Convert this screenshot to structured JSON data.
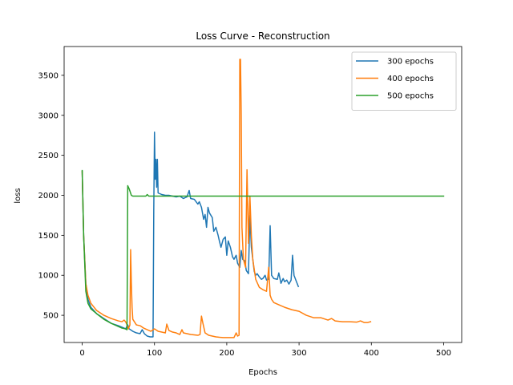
{
  "chart_data": {
    "type": "line",
    "title": "Loss Curve - Reconstruction",
    "xlabel": "Epochs",
    "ylabel": "loss",
    "xlim": [
      -25,
      525
    ],
    "ylim": [
      160,
      3860
    ],
    "xticks": [
      0,
      100,
      200,
      300,
      400,
      500
    ],
    "yticks": [
      500,
      1000,
      1500,
      2000,
      2500,
      3000,
      3500
    ],
    "grid": false,
    "legend_position": "top-right",
    "series": [
      {
        "name": "300 epochs",
        "color": "#1f77b4",
        "points": [
          [
            0,
            2300
          ],
          [
            2,
            1500
          ],
          [
            5,
            900
          ],
          [
            8,
            700
          ],
          [
            12,
            600
          ],
          [
            20,
            520
          ],
          [
            30,
            460
          ],
          [
            40,
            400
          ],
          [
            50,
            370
          ],
          [
            58,
            340
          ],
          [
            60,
            330
          ],
          [
            63,
            380
          ],
          [
            65,
            330
          ],
          [
            70,
            300
          ],
          [
            75,
            280
          ],
          [
            80,
            270
          ],
          [
            83,
            320
          ],
          [
            86,
            270
          ],
          [
            90,
            240
          ],
          [
            94,
            230
          ],
          [
            97,
            230
          ],
          [
            98,
            230
          ],
          [
            99,
            1800
          ],
          [
            100,
            2790
          ],
          [
            101,
            2200
          ],
          [
            102,
            2450
          ],
          [
            103,
            2100
          ],
          [
            104,
            2450
          ],
          [
            105,
            2030
          ],
          [
            110,
            2010
          ],
          [
            115,
            2000
          ],
          [
            120,
            2000
          ],
          [
            125,
            1990
          ],
          [
            130,
            1980
          ],
          [
            135,
            1990
          ],
          [
            140,
            1960
          ],
          [
            145,
            1980
          ],
          [
            148,
            2060
          ],
          [
            150,
            1960
          ],
          [
            155,
            1950
          ],
          [
            160,
            1890
          ],
          [
            162,
            1920
          ],
          [
            165,
            1850
          ],
          [
            168,
            1700
          ],
          [
            170,
            1760
          ],
          [
            172,
            1600
          ],
          [
            174,
            1850
          ],
          [
            176,
            1780
          ],
          [
            180,
            1720
          ],
          [
            182,
            1550
          ],
          [
            185,
            1600
          ],
          [
            188,
            1500
          ],
          [
            190,
            1420
          ],
          [
            192,
            1350
          ],
          [
            195,
            1450
          ],
          [
            198,
            1480
          ],
          [
            200,
            1250
          ],
          [
            202,
            1430
          ],
          [
            205,
            1350
          ],
          [
            208,
            1230
          ],
          [
            210,
            1200
          ],
          [
            213,
            1250
          ],
          [
            215,
            1150
          ],
          [
            218,
            1100
          ],
          [
            220,
            1310
          ],
          [
            222,
            1200
          ],
          [
            225,
            1180
          ],
          [
            227,
            1060
          ],
          [
            230,
            1020
          ],
          [
            232,
            1750
          ],
          [
            234,
            1350
          ],
          [
            236,
            1200
          ],
          [
            238,
            1050
          ],
          [
            240,
            1000
          ],
          [
            242,
            1020
          ],
          [
            245,
            980
          ],
          [
            248,
            950
          ],
          [
            250,
            960
          ],
          [
            253,
            1000
          ],
          [
            255,
            940
          ],
          [
            258,
            950
          ],
          [
            260,
            1620
          ],
          [
            262,
            1000
          ],
          [
            265,
            960
          ],
          [
            270,
            950
          ],
          [
            272,
            1030
          ],
          [
            275,
            900
          ],
          [
            278,
            960
          ],
          [
            280,
            920
          ],
          [
            283,
            940
          ],
          [
            286,
            890
          ],
          [
            289,
            940
          ],
          [
            291,
            1250
          ],
          [
            293,
            1000
          ],
          [
            296,
            930
          ],
          [
            299,
            860
          ]
        ]
      },
      {
        "name": "400 epochs",
        "color": "#ff7f0e",
        "points": [
          [
            0,
            2300
          ],
          [
            2,
            1500
          ],
          [
            5,
            900
          ],
          [
            8,
            750
          ],
          [
            12,
            650
          ],
          [
            20,
            560
          ],
          [
            30,
            500
          ],
          [
            40,
            460
          ],
          [
            50,
            430
          ],
          [
            55,
            420
          ],
          [
            58,
            440
          ],
          [
            60,
            420
          ],
          [
            62,
            380
          ],
          [
            64,
            330
          ],
          [
            66,
            380
          ],
          [
            67,
            1320
          ],
          [
            68,
            900
          ],
          [
            69,
            600
          ],
          [
            70,
            450
          ],
          [
            75,
            380
          ],
          [
            80,
            370
          ],
          [
            85,
            340
          ],
          [
            90,
            320
          ],
          [
            95,
            300
          ],
          [
            100,
            330
          ],
          [
            105,
            300
          ],
          [
            110,
            290
          ],
          [
            115,
            280
          ],
          [
            117,
            390
          ],
          [
            120,
            310
          ],
          [
            125,
            290
          ],
          [
            130,
            280
          ],
          [
            135,
            260
          ],
          [
            138,
            320
          ],
          [
            140,
            280
          ],
          [
            145,
            270
          ],
          [
            150,
            260
          ],
          [
            155,
            255
          ],
          [
            160,
            250
          ],
          [
            163,
            260
          ],
          [
            165,
            490
          ],
          [
            167,
            400
          ],
          [
            170,
            280
          ],
          [
            175,
            250
          ],
          [
            180,
            240
          ],
          [
            185,
            230
          ],
          [
            190,
            225
          ],
          [
            195,
            222
          ],
          [
            200,
            222
          ],
          [
            205,
            222
          ],
          [
            210,
            222
          ],
          [
            213,
            280
          ],
          [
            215,
            240
          ],
          [
            217,
            250
          ],
          [
            218,
            3700
          ],
          [
            219,
            3700
          ],
          [
            220,
            3000
          ],
          [
            221,
            1600
          ],
          [
            223,
            1200
          ],
          [
            226,
            1100
          ],
          [
            228,
            2320
          ],
          [
            230,
            1400
          ],
          [
            232,
            1990
          ],
          [
            234,
            1500
          ],
          [
            236,
            1200
          ],
          [
            240,
            950
          ],
          [
            245,
            850
          ],
          [
            250,
            820
          ],
          [
            255,
            800
          ],
          [
            258,
            1100
          ],
          [
            260,
            750
          ],
          [
            262,
            700
          ],
          [
            265,
            660
          ],
          [
            270,
            640
          ],
          [
            280,
            600
          ],
          [
            290,
            570
          ],
          [
            300,
            550
          ],
          [
            310,
            500
          ],
          [
            320,
            470
          ],
          [
            330,
            470
          ],
          [
            340,
            440
          ],
          [
            345,
            460
          ],
          [
            350,
            430
          ],
          [
            360,
            420
          ],
          [
            370,
            420
          ],
          [
            380,
            415
          ],
          [
            385,
            430
          ],
          [
            390,
            410
          ],
          [
            395,
            410
          ],
          [
            399,
            420
          ]
        ]
      },
      {
        "name": "500 epochs",
        "color": "#2ca02c",
        "points": [
          [
            0,
            2310
          ],
          [
            2,
            1500
          ],
          [
            5,
            800
          ],
          [
            8,
            650
          ],
          [
            12,
            580
          ],
          [
            20,
            520
          ],
          [
            30,
            450
          ],
          [
            40,
            400
          ],
          [
            50,
            360
          ],
          [
            55,
            340
          ],
          [
            60,
            330
          ],
          [
            62,
            320
          ],
          [
            63,
            2120
          ],
          [
            65,
            2080
          ],
          [
            68,
            2000
          ],
          [
            70,
            1990
          ],
          [
            80,
            1990
          ],
          [
            88,
            1990
          ],
          [
            90,
            2010
          ],
          [
            92,
            1990
          ],
          [
            100,
            1990
          ],
          [
            200,
            1990
          ],
          [
            300,
            1990
          ],
          [
            400,
            1990
          ],
          [
            500,
            1990
          ]
        ]
      }
    ]
  }
}
